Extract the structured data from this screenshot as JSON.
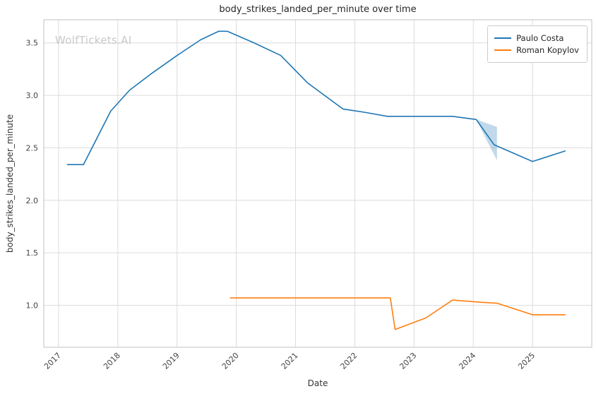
{
  "header": {
    "title": "body_strikes_landed_per_minute over time",
    "watermark": "WolfTickets.AI"
  },
  "chart_data": {
    "type": "line",
    "title": "body_strikes_landed_per_minute over time",
    "xlabel": "Date",
    "ylabel": "body_strikes_landed_per_minute",
    "xlim": [
      2016.75,
      2026.0
    ],
    "ylim": [
      0.6,
      3.72
    ],
    "x_ticks": [
      2017,
      2018,
      2019,
      2020,
      2021,
      2022,
      2023,
      2024,
      2025
    ],
    "y_ticks": [
      1.0,
      1.5,
      2.0,
      2.5,
      3.0,
      3.5
    ],
    "grid": true,
    "grid_color": "#dcdcdc",
    "frame_color": "#cccccc",
    "legend_position": "upper right",
    "series": [
      {
        "name": "Paulo Costa",
        "color": "#1f77b4",
        "points": [
          [
            2017.15,
            2.34
          ],
          [
            2017.42,
            2.34
          ],
          [
            2017.88,
            2.85
          ],
          [
            2018.2,
            3.05
          ],
          [
            2018.55,
            3.2
          ],
          [
            2019.0,
            3.38
          ],
          [
            2019.4,
            3.53
          ],
          [
            2019.7,
            3.61
          ],
          [
            2019.85,
            3.61
          ],
          [
            2020.3,
            3.5
          ],
          [
            2020.75,
            3.38
          ],
          [
            2021.2,
            3.12
          ],
          [
            2021.8,
            2.87
          ],
          [
            2022.15,
            2.84
          ],
          [
            2022.55,
            2.8
          ],
          [
            2023.1,
            2.8
          ],
          [
            2023.65,
            2.8
          ],
          [
            2024.05,
            2.77
          ],
          [
            2024.35,
            2.53
          ],
          [
            2025.0,
            2.37
          ],
          [
            2025.55,
            2.47
          ]
        ]
      },
      {
        "name": "Roman Kopylov",
        "color": "#ff7f0e",
        "points": [
          [
            2019.9,
            1.07
          ],
          [
            2022.6,
            1.07
          ],
          [
            2022.68,
            0.77
          ],
          [
            2023.2,
            0.88
          ],
          [
            2023.65,
            1.05
          ],
          [
            2024.1,
            1.03
          ],
          [
            2024.4,
            1.02
          ],
          [
            2025.0,
            0.91
          ],
          [
            2025.55,
            0.91
          ]
        ]
      }
    ],
    "uncertainty_band": {
      "series": "Paulo Costa",
      "color": "#1f77b4",
      "opacity": 0.28,
      "polygon": [
        [
          2024.05,
          2.77
        ],
        [
          2024.4,
          2.7
        ],
        [
          2024.4,
          2.38
        ]
      ]
    }
  }
}
